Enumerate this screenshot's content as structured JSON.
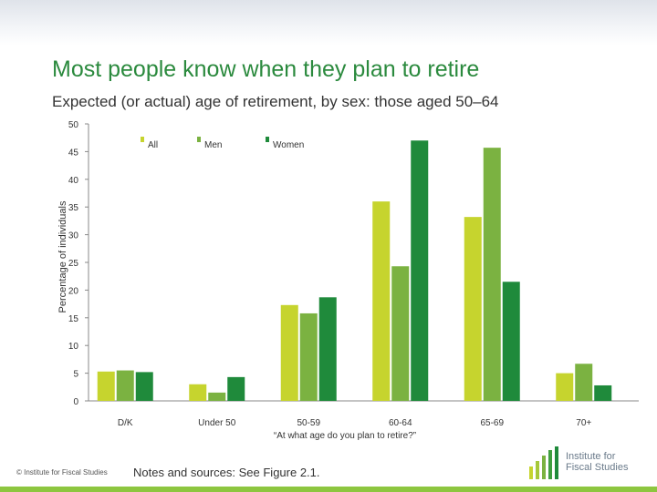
{
  "slide": {
    "title": "Most people know when they plan to retire",
    "subtitle": "Expected (or actual) age of retirement, by sex: those aged 50–64",
    "footer_copyright": "© Institute for Fiscal Studies",
    "footer_notes": "Notes and sources: See Figure 2.1.",
    "logo_text": "Institute for Fiscal Studies",
    "accent_color": "#2b8a3e"
  },
  "chart_data": {
    "type": "bar",
    "title": "",
    "xlabel": "“At what age do you plan to retire?”",
    "ylabel": "Percentage of individuals",
    "ylim": [
      0,
      50
    ],
    "yticks": [
      0,
      5,
      10,
      15,
      20,
      25,
      30,
      35,
      40,
      45,
      50
    ],
    "grid": false,
    "legend_position": "top",
    "categories": [
      "D/K",
      "Under 50",
      "50-59",
      "60-64",
      "65-69",
      "70+"
    ],
    "series": [
      {
        "name": "All",
        "color": "#c6d42e",
        "values": [
          5.3,
          3.0,
          17.3,
          36.0,
          33.2,
          5.0
        ]
      },
      {
        "name": "Men",
        "color": "#7bb241",
        "values": [
          5.5,
          1.5,
          15.8,
          24.3,
          45.7,
          6.7
        ]
      },
      {
        "name": "Women",
        "color": "#1f8a3b",
        "values": [
          5.2,
          4.3,
          18.7,
          47.0,
          21.5,
          2.8
        ]
      }
    ]
  }
}
